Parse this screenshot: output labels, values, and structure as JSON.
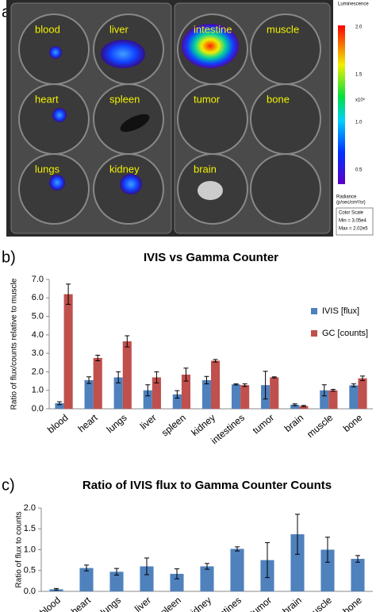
{
  "image_panel": {
    "label": "a)",
    "wells": [
      "blood",
      "liver",
      "intestine",
      "muscle",
      "heart",
      "spleen",
      "tumor",
      "bone",
      "lungs",
      "kidney",
      "brain"
    ],
    "colorbar": {
      "title": "Luminescence",
      "ticks": [
        "2.0",
        "1.5",
        "1.0",
        "0.5"
      ],
      "exponent": "x10⁵",
      "unit_title": "Radiance",
      "unit": "(p/sec/cm²/sr)",
      "scale_title": "Color Scale",
      "min": "Min = 3.05e4",
      "max": "Max = 2.02e5"
    }
  },
  "chart_data": [
    {
      "type": "bar",
      "panel_label": "b)",
      "title": "IVIS vs Gamma Counter",
      "y_label": "Ratio of flux/counts relative to muscle",
      "categories": [
        "blood",
        "heart",
        "lungs",
        "liver",
        "spleen",
        "kidney",
        "intestines",
        "tumor",
        "brain",
        "muscle",
        "bone"
      ],
      "series": [
        {
          "name": "IVIS [flux]",
          "color": "#4f81bd",
          "values": [
            0.3,
            1.55,
            1.7,
            1.0,
            0.78,
            1.55,
            1.32,
            1.28,
            0.22,
            1.0,
            1.27
          ],
          "errors": [
            0.08,
            0.18,
            0.3,
            0.3,
            0.2,
            0.2,
            0.03,
            0.75,
            0.05,
            0.3,
            0.08
          ]
        },
        {
          "name": "GC [counts]",
          "color": "#c0504d",
          "values": [
            6.2,
            2.75,
            3.65,
            1.7,
            1.85,
            2.6,
            1.28,
            1.7,
            0.15,
            1.0,
            1.65
          ],
          "errors": [
            0.55,
            0.15,
            0.3,
            0.3,
            0.35,
            0.07,
            0.07,
            0.03,
            0.03,
            0.05,
            0.12
          ]
        }
      ],
      "ylim": [
        0,
        7
      ],
      "yticks": [
        {
          "value": 0,
          "label": "0.0"
        },
        {
          "value": 1,
          "label": "1.0"
        },
        {
          "value": 2,
          "label": "2.0"
        },
        {
          "value": 3,
          "label": "3.0"
        },
        {
          "value": 4,
          "label": "4.0"
        },
        {
          "value": 5,
          "label": "5.0"
        },
        {
          "value": 6,
          "label": "6.0"
        },
        {
          "value": 7,
          "label": "7.0"
        }
      ],
      "legend": "upper right"
    },
    {
      "type": "bar",
      "panel_label": "c)",
      "title": "Ratio of IVIS flux to Gamma Counter Counts",
      "y_label": "Ratio of flux to counts",
      "categories": [
        "blood",
        "heart",
        "lungs",
        "liver",
        "spleen",
        "kidney",
        "intestines",
        "tumor",
        "brain",
        "muscle",
        "bone"
      ],
      "series": [
        {
          "color": "#4f81bd",
          "values": [
            0.05,
            0.56,
            0.47,
            0.6,
            0.42,
            0.6,
            1.02,
            0.75,
            1.37,
            1.0,
            0.78
          ],
          "errors": [
            0.02,
            0.07,
            0.08,
            0.2,
            0.12,
            0.07,
            0.05,
            0.42,
            0.48,
            0.3,
            0.08
          ]
        }
      ],
      "ylim": [
        0,
        2
      ],
      "yticks": [
        {
          "value": 0,
          "label": "0.0"
        },
        {
          "value": 0.5,
          "label": "0.5"
        },
        {
          "value": 1,
          "label": "1.0"
        },
        {
          "value": 1.5,
          "label": "1.5"
        },
        {
          "value": 2,
          "label": "2.0"
        }
      ]
    }
  ]
}
